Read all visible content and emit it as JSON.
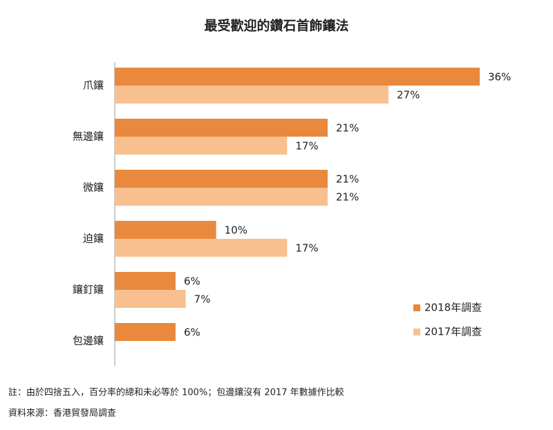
{
  "chart_data": {
    "type": "bar",
    "orientation": "horizontal",
    "title": "最受歡迎的鑽石首飾鑲法",
    "categories": [
      "爪鑲",
      "無邊鑲",
      "微鑲",
      "迫鑲",
      "鑲釘鑲",
      "包邊鑲"
    ],
    "series": [
      {
        "name": "2018年調查",
        "color": "#e8893d",
        "values": [
          36,
          21,
          21,
          10,
          6,
          6
        ],
        "value_labels": [
          "36%",
          "21%",
          "21%",
          "10%",
          "6%",
          "6%"
        ]
      },
      {
        "name": "2017年調查",
        "color": "#f9c08f",
        "values": [
          27,
          17,
          21,
          17,
          7,
          null
        ],
        "value_labels": [
          "27%",
          "17%",
          "21%",
          "17%",
          "7%",
          null
        ]
      }
    ],
    "notes": [
      "註：由於四捨五入，百分率的總和未必等於 100%；包邊鑲沒有 2017 年數據作比較",
      "資料來源：香港貿發局調查"
    ]
  }
}
